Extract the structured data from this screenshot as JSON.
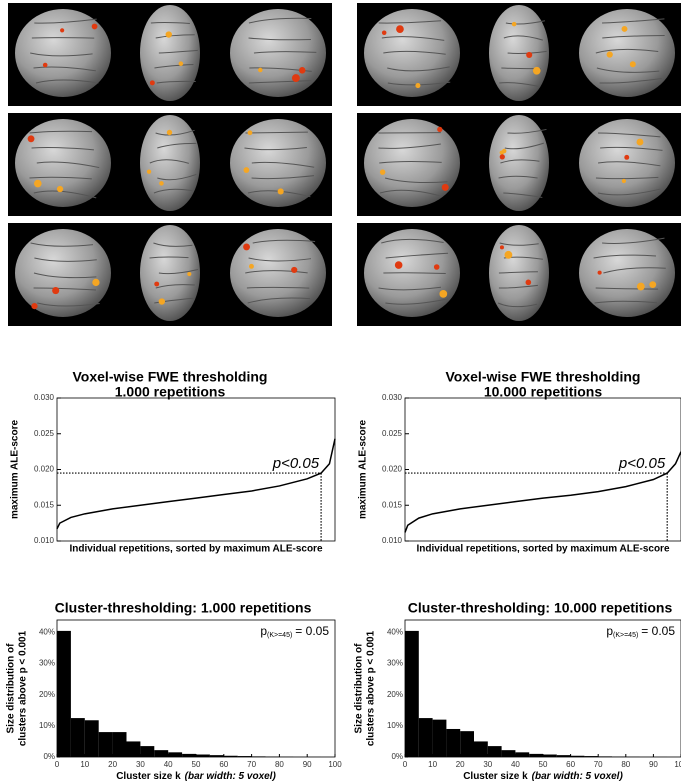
{
  "chart_data": [
    {
      "type": "line",
      "title": "Voxel-wise FWE thresholding",
      "subtitle": "1.000 repetitions",
      "ylabel": "maximum ALE-score",
      "xlabel": "Individual repetitions, sorted by maximum ALE-score",
      "x": [
        0,
        10,
        50,
        100,
        200,
        300,
        400,
        500,
        600,
        700,
        800,
        900,
        950,
        980,
        1000
      ],
      "values": [
        0.0117,
        0.0125,
        0.0133,
        0.0138,
        0.0145,
        0.015,
        0.0155,
        0.016,
        0.0165,
        0.017,
        0.0177,
        0.0187,
        0.0195,
        0.0208,
        0.0243
      ],
      "color": "#000000",
      "xlim": [
        0,
        1000
      ],
      "ylim": [
        0.01,
        0.03
      ],
      "yticks": [
        {
          "value": 0.01,
          "label": "0.010"
        },
        {
          "value": 0.015,
          "label": "0.015"
        },
        {
          "value": 0.02,
          "label": "0.020"
        },
        {
          "value": 0.025,
          "label": "0.025"
        },
        {
          "value": 0.03,
          "label": "0.030"
        }
      ],
      "threshold": {
        "x": 950,
        "y": 0.0195,
        "label": "p<0.05"
      }
    },
    {
      "type": "line",
      "title": "Voxel-wise FWE thresholding",
      "subtitle": "10.000 repetitions",
      "ylabel": "maximum ALE-score",
      "xlabel": "Individual repetitions, sorted by maximum ALE-score",
      "x": [
        0,
        100,
        500,
        1000,
        2000,
        3000,
        4000,
        5000,
        6000,
        7000,
        8000,
        9000,
        9500,
        9800,
        10000
      ],
      "values": [
        0.0112,
        0.0122,
        0.0132,
        0.0138,
        0.0145,
        0.015,
        0.0155,
        0.016,
        0.0164,
        0.0169,
        0.0176,
        0.0186,
        0.0195,
        0.0208,
        0.0225
      ],
      "color": "#000000",
      "xlim": [
        0,
        10000
      ],
      "ylim": [
        0.01,
        0.03
      ],
      "yticks": [
        {
          "value": 0.01,
          "label": "0.010"
        },
        {
          "value": 0.015,
          "label": "0.015"
        },
        {
          "value": 0.02,
          "label": "0.020"
        },
        {
          "value": 0.025,
          "label": "0.025"
        },
        {
          "value": 0.03,
          "label": "0.030"
        }
      ],
      "threshold": {
        "x": 9500,
        "y": 0.0195,
        "label": "p<0.05"
      }
    },
    {
      "type": "histogram",
      "title": "Cluster-thresholding: 1.000 repetitions",
      "ylabel": [
        "Size distribution of",
        "clusters above p < 0.001"
      ],
      "xlabel": "Cluster size k",
      "xlabel_note": "(bar width: 5 voxel)",
      "annotation": {
        "p": "p",
        "subscript": "(K>=45)",
        "text": "= 0.05"
      },
      "bins": [
        0,
        5,
        10,
        15,
        20,
        25,
        30,
        35,
        40,
        45,
        50,
        55,
        60,
        65,
        70,
        75,
        80,
        85,
        90,
        95,
        100
      ],
      "values": [
        40.5,
        12.5,
        11.8,
        8,
        8,
        5,
        3.5,
        2.2,
        1.5,
        1,
        0.8,
        0.6,
        0.4,
        0.3,
        0.2,
        0.15,
        0.1,
        0.05,
        0.05,
        0.03
      ],
      "color": "#000000",
      "xlim": [
        0,
        100
      ],
      "ylim": [
        0,
        44
      ],
      "xticks": [
        0,
        10,
        20,
        30,
        40,
        50,
        60,
        70,
        80,
        90,
        100
      ],
      "yticks": [
        {
          "value": 0,
          "label": "0%"
        },
        {
          "value": 10,
          "label": "10%"
        },
        {
          "value": 20,
          "label": "20%"
        },
        {
          "value": 30,
          "label": "30%"
        },
        {
          "value": 40,
          "label": "40%"
        }
      ]
    },
    {
      "type": "histogram",
      "title": "Cluster-thresholding: 10.000 repetitions",
      "ylabel": [
        "Size distribution of",
        "clusters above p < 0.001"
      ],
      "xlabel": "Cluster size k",
      "xlabel_note": "(bar width: 5 voxel)",
      "annotation": {
        "p": "p",
        "subscript": "(K>=45)",
        "text": "= 0.05"
      },
      "bins": [
        0,
        5,
        10,
        15,
        20,
        25,
        30,
        35,
        40,
        45,
        50,
        55,
        60,
        65,
        70,
        75,
        80,
        85,
        90,
        95,
        100
      ],
      "values": [
        40.5,
        12.5,
        12,
        9,
        8.3,
        5,
        3.5,
        2.2,
        1.5,
        1,
        0.8,
        0.6,
        0.4,
        0.3,
        0.2,
        0.15,
        0.1,
        0.05,
        0.05,
        0.03
      ],
      "color": "#000000",
      "xlim": [
        0,
        100
      ],
      "ylim": [
        0,
        44
      ],
      "xticks": [
        0,
        10,
        20,
        30,
        40,
        50,
        60,
        70,
        80,
        90,
        100
      ],
      "yticks": [
        {
          "value": 0,
          "label": "0%"
        },
        {
          "value": 10,
          "label": "10%"
        },
        {
          "value": 20,
          "label": "20%"
        },
        {
          "value": 30,
          "label": "30%"
        },
        {
          "value": 40,
          "label": "40%"
        }
      ]
    }
  ]
}
